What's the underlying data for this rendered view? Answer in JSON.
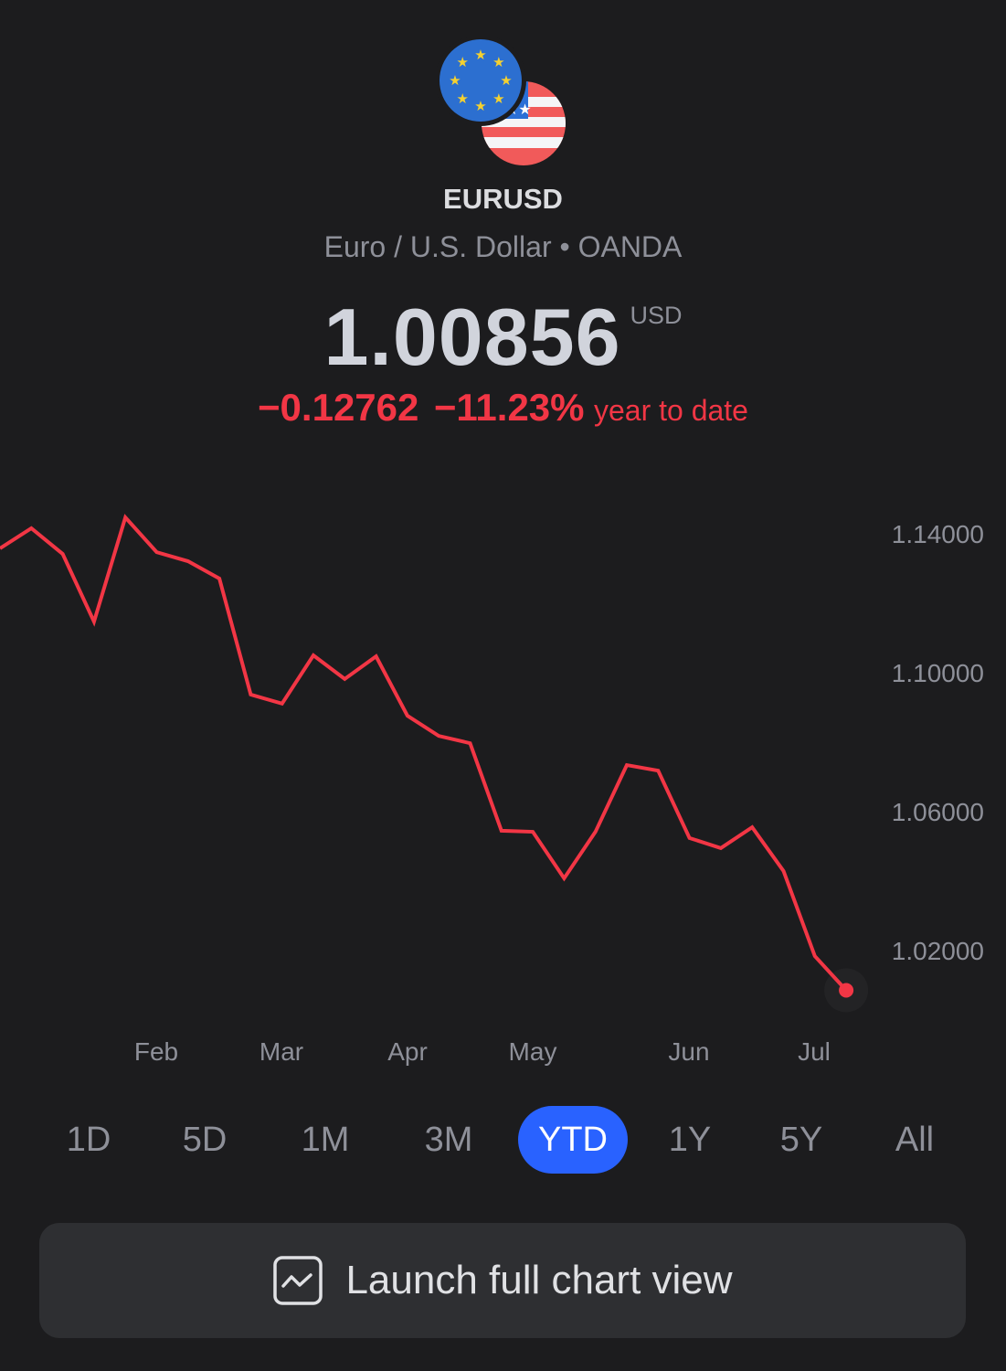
{
  "header": {
    "symbol": "EURUSD",
    "description": "Euro / U.S. Dollar • OANDA",
    "price": "1.00856",
    "currency": "USD",
    "change_abs": "−0.12762",
    "change_pct": "−11.23%",
    "change_period": "year to date",
    "base_flag_icon": "eu-flag-icon",
    "quote_flag_icon": "us-flag-icon"
  },
  "colors": {
    "line": "#f23645",
    "accent": "#2962ff",
    "background": "#1c1c1e"
  },
  "chart_data": {
    "type": "line",
    "title": "",
    "xlabel": "",
    "ylabel": "",
    "y_ticks": [
      "1.14000",
      "1.10000",
      "1.06000",
      "1.02000"
    ],
    "y_tick_values": [
      1.14,
      1.1,
      1.06,
      1.02
    ],
    "x_tick_labels": [
      "Feb",
      "Mar",
      "Apr",
      "May",
      "Jun",
      "Jul"
    ],
    "x_tick_indices": [
      5,
      9,
      13,
      17,
      22,
      26
    ],
    "ylim": [
      1.003,
      1.155
    ],
    "grid": false,
    "series": [
      {
        "values": [
          1.1358,
          1.1416,
          1.1342,
          1.1147,
          1.1447,
          1.1347,
          1.1321,
          1.1271,
          1.0937,
          1.0911,
          1.105,
          1.0982,
          1.1047,
          1.0876,
          1.0818,
          1.0797,
          1.0545,
          1.0542,
          1.0408,
          1.0542,
          1.0734,
          1.0718,
          1.0524,
          1.0495,
          1.0555,
          1.0429,
          1.0184,
          1.00856
        ]
      }
    ]
  },
  "periods": [
    {
      "label": "1D",
      "active": false
    },
    {
      "label": "5D",
      "active": false
    },
    {
      "label": "1M",
      "active": false
    },
    {
      "label": "3M",
      "active": false
    },
    {
      "label": "YTD",
      "active": true
    },
    {
      "label": "1Y",
      "active": false
    },
    {
      "label": "5Y",
      "active": false
    },
    {
      "label": "All",
      "active": false
    }
  ],
  "launch_button": {
    "label": "Launch full chart view",
    "icon": "chart-icon"
  }
}
